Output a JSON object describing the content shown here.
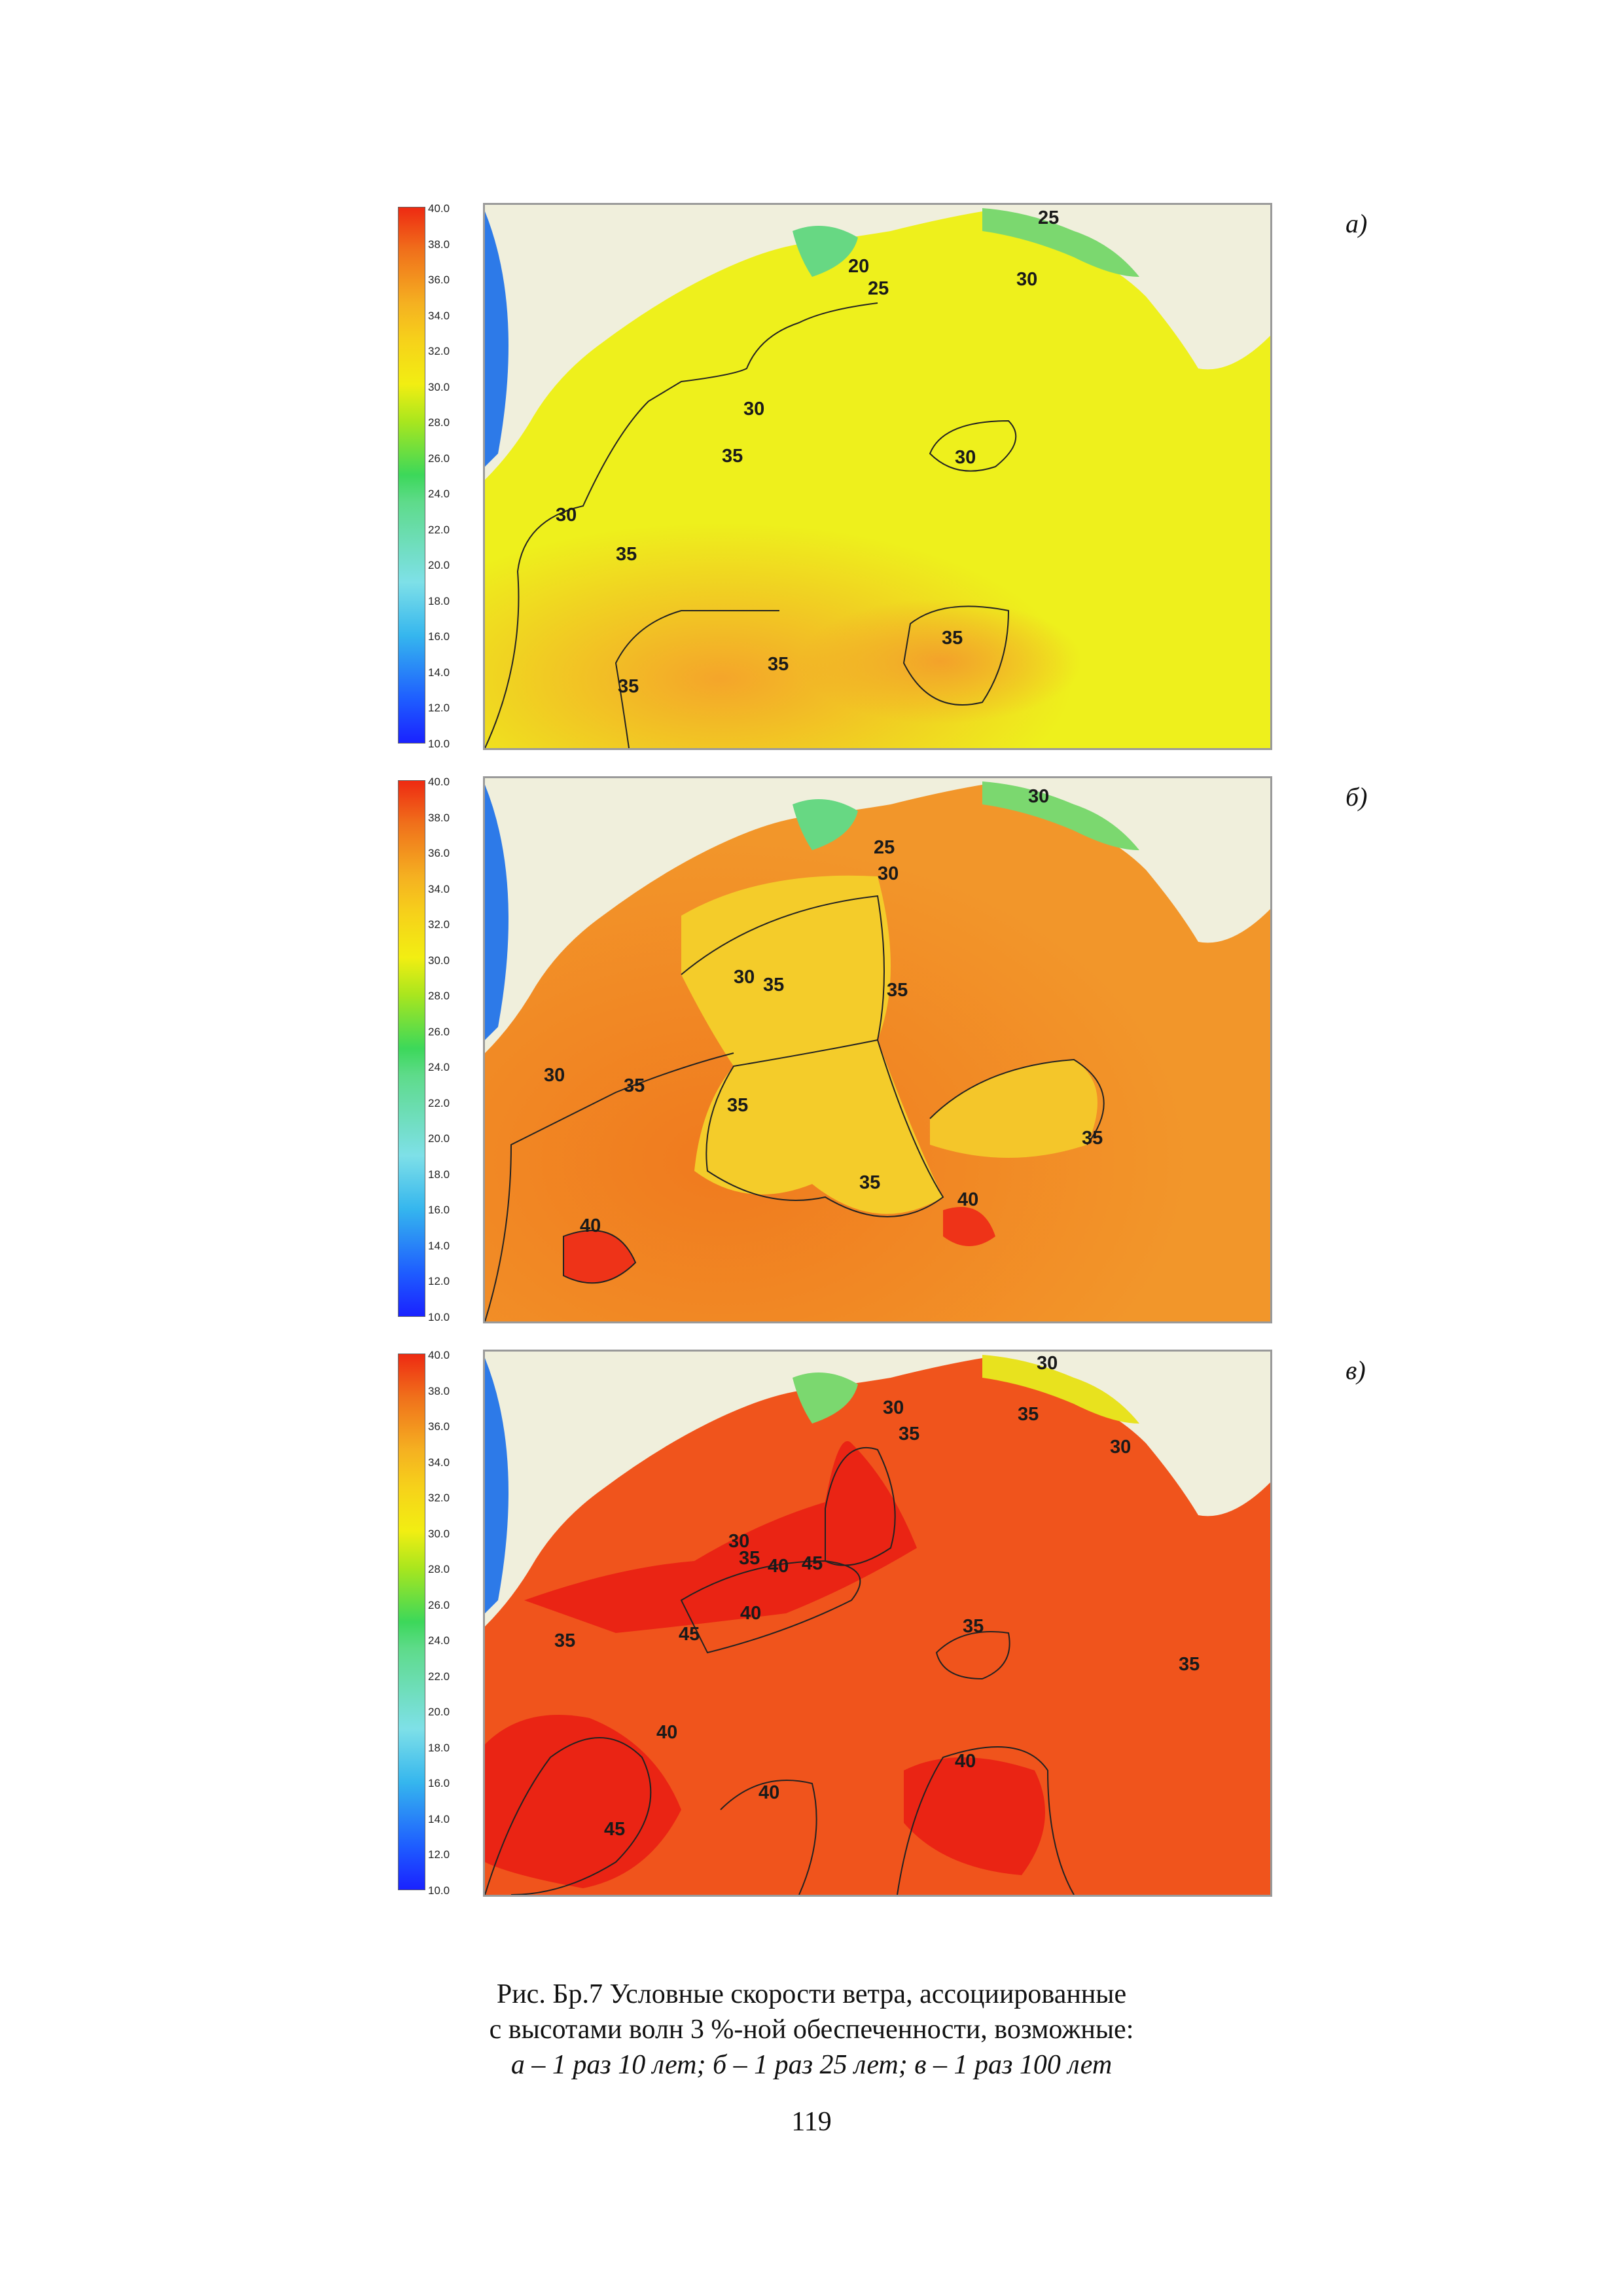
{
  "color_scale": {
    "ticks": [
      "40.0",
      "38.0",
      "36.0",
      "34.0",
      "32.0",
      "30.0",
      "28.0",
      "26.0",
      "24.0",
      "22.0",
      "20.0",
      "18.0",
      "16.0",
      "14.0",
      "12.0",
      "10.0"
    ]
  },
  "panels": [
    {
      "label": "а)",
      "isolines": [
        "25",
        "20",
        "25",
        "30",
        "30",
        "35",
        "30",
        "30",
        "35",
        "35",
        "35",
        "35"
      ]
    },
    {
      "label": "б)",
      "isolines": [
        "30",
        "25",
        "30",
        "30",
        "35",
        "35",
        "30",
        "35",
        "35",
        "35",
        "35",
        "40",
        "40"
      ]
    },
    {
      "label": "в)",
      "isolines": [
        "30",
        "30",
        "35",
        "35",
        "30",
        "30",
        "35",
        "40",
        "45",
        "45",
        "40",
        "35",
        "35",
        "35",
        "40",
        "40",
        "45",
        "40"
      ]
    }
  ],
  "caption": {
    "line1": "Рис. Бр.7 Условные скорости ветра, ассоциированные",
    "line2": "с высотами волн 3 %-ной обеспеченности, возможные:",
    "line3": "а – 1 раз 10 лет; б – 1 раз 25 лет; в – 1 раз 100 лет"
  },
  "page_number": "119"
}
